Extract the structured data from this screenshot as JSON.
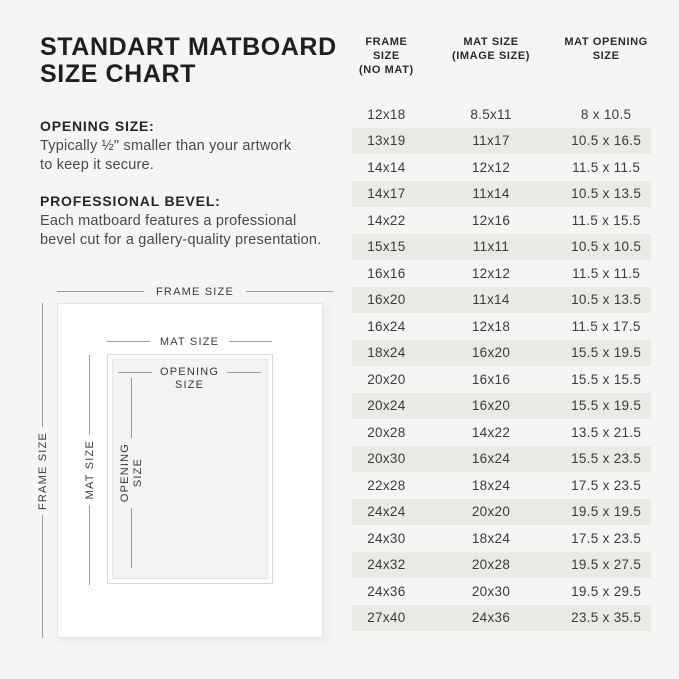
{
  "colors": {
    "background": "#f6f5f3",
    "row_stripe": "#eae9e6",
    "frame_fill": "#ffffff",
    "line_gray": "#9b9b9b",
    "text_dark": "#1f1f1f"
  },
  "title": {
    "line1": "STANDART MATBOARD",
    "line2": "SIZE CHART"
  },
  "sections": [
    {
      "heading": "OPENING SIZE:",
      "lines": [
        "Typically ½\" smaller than your artwork",
        "to keep it secure."
      ]
    },
    {
      "heading": "PROFESSIONAL BEVEL:",
      "lines": [
        "Each matboard features a professional",
        "bevel cut for a gallery-quality presentation."
      ]
    }
  ],
  "diagram": {
    "labels": {
      "frame": "FRAME SIZE",
      "mat": "MAT SIZE",
      "opening_1": "OPENING",
      "opening_2": "SIZE"
    }
  },
  "table": {
    "header": [
      {
        "line1": "FRAME SIZE",
        "line2": "(NO MAT)"
      },
      {
        "line1": "MAT SIZE",
        "line2": "(IMAGE SIZE)"
      },
      {
        "line1": "MAT OPENING",
        "line2": "SIZE"
      }
    ],
    "rows": [
      [
        "12x18",
        "8.5x11",
        "8 x 10.5"
      ],
      [
        "13x19",
        "11x17",
        "10.5 x 16.5"
      ],
      [
        "14x14",
        "12x12",
        "11.5 x 11.5"
      ],
      [
        "14x17",
        "11x14",
        "10.5 x 13.5"
      ],
      [
        "14x22",
        "12x16",
        "11.5 x 15.5"
      ],
      [
        "15x15",
        "11x11",
        "10.5 x 10.5"
      ],
      [
        "16x16",
        "12x12",
        "11.5 x 11.5"
      ],
      [
        "16x20",
        "11x14",
        "10.5 x 13.5"
      ],
      [
        "16x24",
        "12x18",
        "11.5 x 17.5"
      ],
      [
        "18x24",
        "16x20",
        "15.5 x 19.5"
      ],
      [
        "20x20",
        "16x16",
        "15.5 x 15.5"
      ],
      [
        "20x24",
        "16x20",
        "15.5 x 19.5"
      ],
      [
        "20x28",
        "14x22",
        "13.5 x 21.5"
      ],
      [
        "20x30",
        "16x24",
        "15.5 x 23.5"
      ],
      [
        "22x28",
        "18x24",
        "17.5 x 23.5"
      ],
      [
        "24x24",
        "20x20",
        "19.5 x 19.5"
      ],
      [
        "24x30",
        "18x24",
        "17.5 x 23.5"
      ],
      [
        "24x32",
        "20x28",
        "19.5 x 27.5"
      ],
      [
        "24x36",
        "20x30",
        "19.5 x 29.5"
      ],
      [
        "27x40",
        "24x36",
        "23.5 x 35.5"
      ]
    ]
  },
  "chart_data": {
    "type": "table",
    "title": "STANDART MATBOARD SIZE CHART",
    "columns": [
      "FRAME SIZE (NO MAT)",
      "MAT SIZE (IMAGE SIZE)",
      "MAT OPENING SIZE"
    ],
    "rows": [
      [
        "12x18",
        "8.5x11",
        "8 x 10.5"
      ],
      [
        "13x19",
        "11x17",
        "10.5 x 16.5"
      ],
      [
        "14x14",
        "12x12",
        "11.5 x 11.5"
      ],
      [
        "14x17",
        "11x14",
        "10.5 x 13.5"
      ],
      [
        "14x22",
        "12x16",
        "11.5 x 15.5"
      ],
      [
        "15x15",
        "11x11",
        "10.5 x 10.5"
      ],
      [
        "16x16",
        "12x12",
        "11.5 x 11.5"
      ],
      [
        "16x20",
        "11x14",
        "10.5 x 13.5"
      ],
      [
        "16x24",
        "12x18",
        "11.5 x 17.5"
      ],
      [
        "18x24",
        "16x20",
        "15.5 x 19.5"
      ],
      [
        "20x20",
        "16x16",
        "15.5 x 15.5"
      ],
      [
        "20x24",
        "16x20",
        "15.5 x 19.5"
      ],
      [
        "20x28",
        "14x22",
        "13.5 x 21.5"
      ],
      [
        "20x30",
        "16x24",
        "15.5 x 23.5"
      ],
      [
        "22x28",
        "18x24",
        "17.5 x 23.5"
      ],
      [
        "24x24",
        "20x20",
        "19.5 x 19.5"
      ],
      [
        "24x30",
        "18x24",
        "17.5 x 23.5"
      ],
      [
        "24x32",
        "20x28",
        "19.5 x 27.5"
      ],
      [
        "24x36",
        "20x30",
        "19.5 x 29.5"
      ],
      [
        "27x40",
        "24x36",
        "23.5 x 35.5"
      ]
    ],
    "layout": {
      "stripe_rows": "even rows shaded",
      "grid": false
    }
  }
}
